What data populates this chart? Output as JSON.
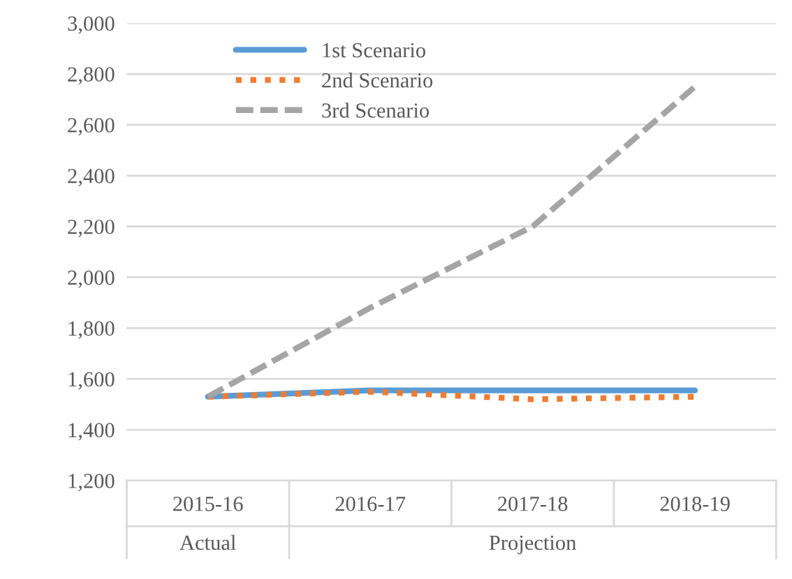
{
  "chart_data": {
    "type": "line",
    "categories": [
      "2015-16",
      "2016-17",
      "2017-18",
      "2018-19"
    ],
    "series": [
      {
        "name": "1st Scenario",
        "color": "#5b9bd5",
        "line_style": "solid",
        "values": [
          1530,
          1555,
          1555,
          1555
        ]
      },
      {
        "name": "2nd Scenario",
        "color": "#ed7d31",
        "line_style": "dotted",
        "values": [
          1530,
          1550,
          1520,
          1530
        ]
      },
      {
        "name": "3rd Scenario",
        "color": "#a5a5a5",
        "line_style": "dashed",
        "values": [
          1530,
          1880,
          2200,
          2750
        ]
      }
    ],
    "ylim": [
      1200,
      3000
    ],
    "yticks": [
      {
        "value": 1200,
        "label": "1,200"
      },
      {
        "value": 1400,
        "label": "1,400"
      },
      {
        "value": 1600,
        "label": "1,600"
      },
      {
        "value": 1800,
        "label": "1,800"
      },
      {
        "value": 2000,
        "label": "2,000"
      },
      {
        "value": 2200,
        "label": "2,200"
      },
      {
        "value": 2400,
        "label": "2,400"
      },
      {
        "value": 2600,
        "label": "2,600"
      },
      {
        "value": 2800,
        "label": "2,800"
      },
      {
        "value": 3000,
        "label": "3,000"
      }
    ],
    "annotations": [
      "Actual",
      "Projection"
    ],
    "grid": "y",
    "legend": "top",
    "marker": "none"
  }
}
